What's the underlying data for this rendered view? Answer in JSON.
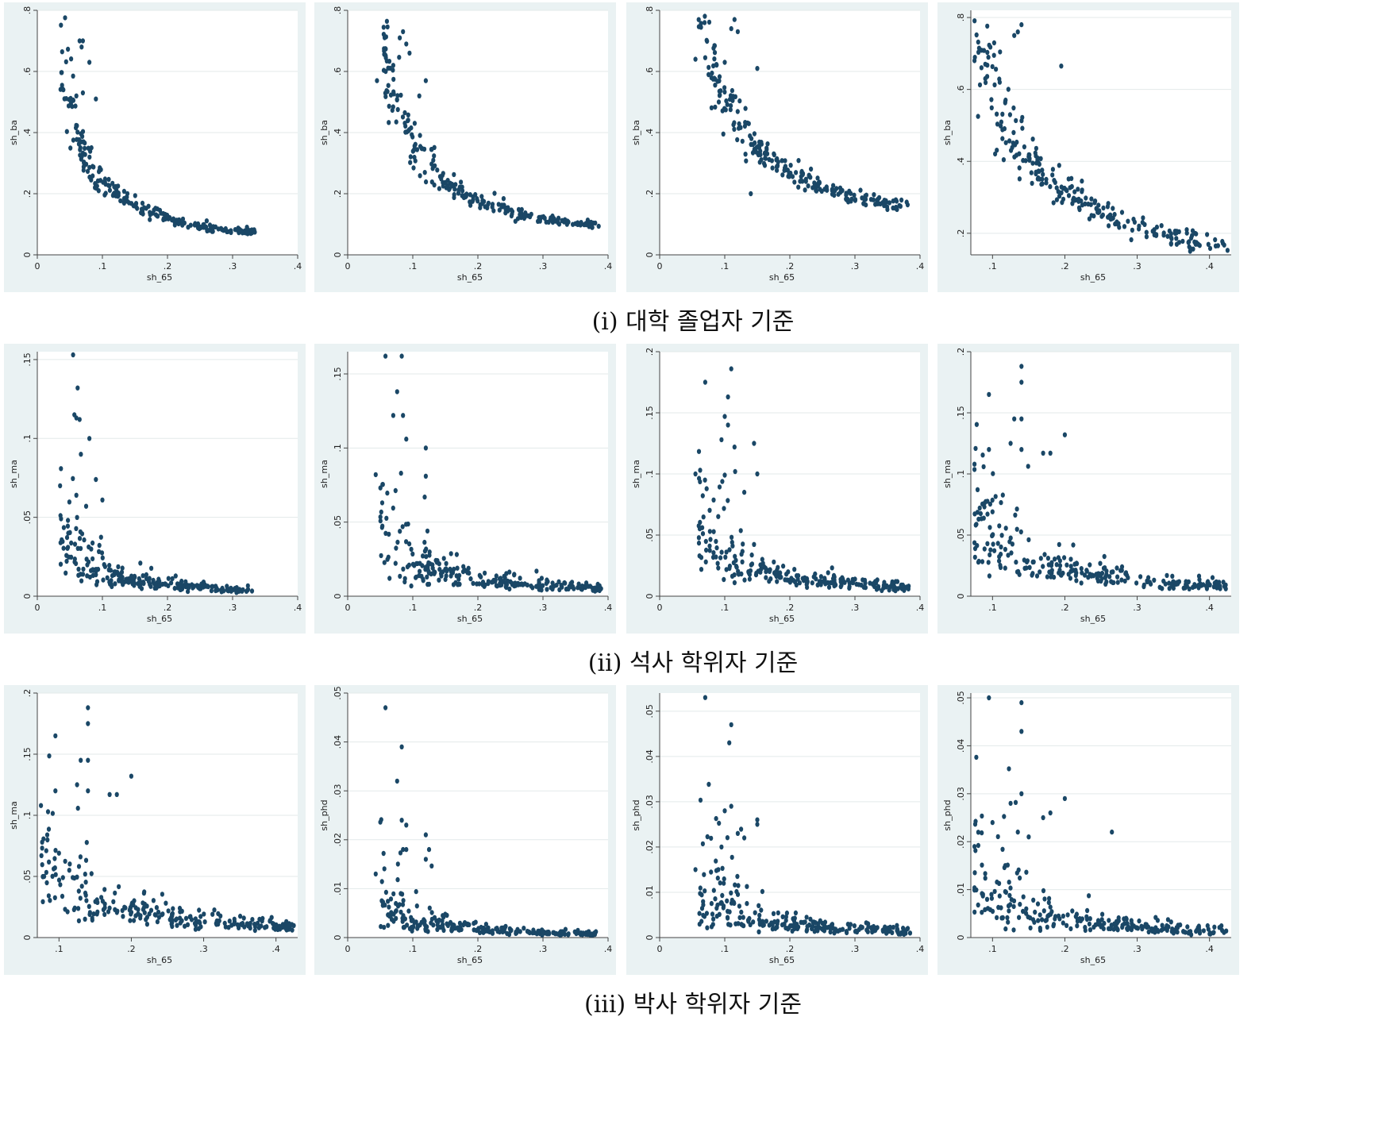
{
  "captions": [
    "(i) 대학 졸업자 기준",
    "(ii) 석사 학위자 기준",
    "(iii) 박사 학위자 기준"
  ],
  "chart_data": [
    {
      "type": "scatter",
      "xlabel": "sh_65",
      "ylabel": "sh_ba",
      "xlim": [
        0,
        0.4
      ],
      "ylim": [
        0,
        0.8
      ],
      "xticks": [
        0,
        0.1,
        0.2,
        0.3,
        0.4
      ],
      "xtick_labels": [
        "0",
        ".1",
        ".2",
        ".3",
        ".4"
      ],
      "yticks": [
        0,
        0.2,
        0.4,
        0.6,
        0.8
      ],
      "ytick_labels": [
        "0",
        ".2",
        ".4",
        ".6",
        ".8"
      ],
      "grid": true,
      "legend": "none",
      "model": {
        "kind": "inv",
        "x_range": [
          0.035,
          0.335
        ],
        "a": 0.024,
        "b": 0.0,
        "spread": 0.12,
        "n": 230
      },
      "points": [
        [
          0.065,
          0.7
        ],
        [
          0.07,
          0.7
        ],
        [
          0.068,
          0.68
        ],
        [
          0.08,
          0.63
        ],
        [
          0.055,
          0.585
        ],
        [
          0.04,
          0.54
        ],
        [
          0.07,
          0.53
        ],
        [
          0.09,
          0.51
        ],
        [
          0.06,
          0.52
        ]
      ]
    },
    {
      "type": "scatter",
      "xlabel": "sh_65",
      "ylabel": "sh_ba",
      "xlim": [
        0,
        0.4
      ],
      "ylim": [
        0,
        0.8
      ],
      "xticks": [
        0,
        0.1,
        0.2,
        0.3,
        0.4
      ],
      "xtick_labels": [
        "0",
        ".1",
        ".2",
        ".3",
        ".4"
      ],
      "yticks": [
        0,
        0.2,
        0.4,
        0.6,
        0.8
      ],
      "ytick_labels": [
        "0",
        ".2",
        ".4",
        ".6",
        ".8"
      ],
      "grid": true,
      "legend": "none",
      "model": {
        "kind": "inv",
        "x_range": [
          0.055,
          0.39
        ],
        "a": 0.036,
        "b": 0.0,
        "spread": 0.12,
        "n": 240
      },
      "points": [
        [
          0.085,
          0.73
        ],
        [
          0.08,
          0.71
        ],
        [
          0.09,
          0.69
        ],
        [
          0.095,
          0.66
        ],
        [
          0.07,
          0.62
        ],
        [
          0.045,
          0.57
        ],
        [
          0.12,
          0.57
        ],
        [
          0.11,
          0.52
        ]
      ]
    },
    {
      "type": "scatter",
      "xlabel": "sh_65",
      "ylabel": "sh_ba",
      "xlim": [
        0,
        0.4
      ],
      "ylim": [
        0,
        0.8
      ],
      "xticks": [
        0,
        0.1,
        0.2,
        0.3,
        0.4
      ],
      "xtick_labels": [
        "0",
        ".1",
        ".2",
        ".3",
        ".4"
      ],
      "yticks": [
        0,
        0.2,
        0.4,
        0.6,
        0.8
      ],
      "ytick_labels": [
        "0",
        ".2",
        ".4",
        ".6",
        ".8"
      ],
      "grid": true,
      "legend": "none",
      "model": {
        "kind": "inv",
        "x_range": [
          0.06,
          0.385
        ],
        "a": 0.048,
        "b": 0.03,
        "spread": 0.11,
        "n": 240
      },
      "points": [
        [
          0.115,
          0.77
        ],
        [
          0.11,
          0.74
        ],
        [
          0.12,
          0.73
        ],
        [
          0.055,
          0.64
        ],
        [
          0.07,
          0.645
        ],
        [
          0.1,
          0.63
        ],
        [
          0.15,
          0.61
        ],
        [
          0.14,
          0.2
        ]
      ]
    },
    {
      "type": "scatter",
      "xlabel": "sh_65",
      "ylabel": "sh_ba",
      "xlim": [
        0.07,
        0.43
      ],
      "ylim": [
        0.14,
        0.82
      ],
      "xticks": [
        0.1,
        0.2,
        0.3,
        0.4
      ],
      "xtick_labels": [
        ".1",
        ".2",
        ".3",
        ".4"
      ],
      "yticks": [
        0.2,
        0.4,
        0.6,
        0.8
      ],
      "ytick_labels": [
        ".2",
        ".4",
        ".6",
        ".8"
      ],
      "grid": true,
      "legend": "none",
      "model": {
        "kind": "inv",
        "x_range": [
          0.075,
          0.425
        ],
        "a": 0.058,
        "b": 0.03,
        "spread": 0.12,
        "n": 250
      },
      "points": [
        [
          0.14,
          0.78
        ],
        [
          0.135,
          0.76
        ],
        [
          0.13,
          0.75
        ],
        [
          0.075,
          0.68
        ],
        [
          0.09,
          0.67
        ],
        [
          0.195,
          0.665
        ],
        [
          0.09,
          0.63
        ],
        [
          0.08,
          0.525
        ],
        [
          0.11,
          0.62
        ]
      ]
    },
    {
      "type": "scatter",
      "xlabel": "sh_65",
      "ylabel": "sh_ma",
      "xlim": [
        0,
        0.4
      ],
      "ylim": [
        0,
        0.155
      ],
      "xticks": [
        0,
        0.1,
        0.2,
        0.3,
        0.4
      ],
      "xtick_labels": [
        "0",
        ".1",
        ".2",
        ".3",
        ".4"
      ],
      "yticks": [
        0,
        0.05,
        0.1,
        0.15
      ],
      "ytick_labels": [
        "0",
        ".05",
        ".1",
        ".15"
      ],
      "grid": true,
      "legend": "none",
      "model": {
        "kind": "inv",
        "x_range": [
          0.035,
          0.335
        ],
        "a": 0.0016,
        "b": -0.001,
        "spread": 0.45,
        "n": 240
      },
      "points": [
        [
          0.055,
          0.153
        ],
        [
          0.062,
          0.132
        ],
        [
          0.057,
          0.115
        ],
        [
          0.06,
          0.113
        ],
        [
          0.065,
          0.112
        ],
        [
          0.08,
          0.1
        ],
        [
          0.067,
          0.09
        ],
        [
          0.09,
          0.074
        ],
        [
          0.035,
          0.07
        ],
        [
          0.1,
          0.061
        ],
        [
          0.06,
          0.064
        ],
        [
          0.075,
          0.057
        ]
      ]
    },
    {
      "type": "scatter",
      "xlabel": "sh_65",
      "ylabel": "sh_ma",
      "xlim": [
        0,
        0.4
      ],
      "ylim": [
        0,
        0.165
      ],
      "xticks": [
        0,
        0.1,
        0.2,
        0.3,
        0.4
      ],
      "xtick_labels": [
        "0",
        ".1",
        ".2",
        ".3",
        ".4"
      ],
      "yticks": [
        0,
        0.05,
        0.1,
        0.15
      ],
      "ytick_labels": [
        "0",
        ".05",
        ".1",
        ".15"
      ],
      "grid": true,
      "legend": "none",
      "model": {
        "kind": "inv",
        "x_range": [
          0.05,
          0.39
        ],
        "a": 0.0025,
        "b": -0.001,
        "spread": 0.45,
        "n": 240
      },
      "points": [
        [
          0.058,
          0.162
        ],
        [
          0.083,
          0.162
        ],
        [
          0.076,
          0.138
        ],
        [
          0.07,
          0.122
        ],
        [
          0.085,
          0.122
        ],
        [
          0.09,
          0.106
        ],
        [
          0.12,
          0.1
        ],
        [
          0.043,
          0.082
        ],
        [
          0.12,
          0.081
        ],
        [
          0.082,
          0.083
        ]
      ]
    },
    {
      "type": "scatter",
      "xlabel": "sh_65",
      "ylabel": "sh_ma",
      "xlim": [
        0,
        0.4
      ],
      "ylim": [
        0,
        0.2
      ],
      "xticks": [
        0,
        0.1,
        0.2,
        0.3,
        0.4
      ],
      "xtick_labels": [
        "0",
        ".1",
        ".2",
        ".3",
        ".4"
      ],
      "yticks": [
        0,
        0.05,
        0.1,
        0.15,
        0.2
      ],
      "ytick_labels": [
        "0",
        ".05",
        ".1",
        ".15",
        ".2"
      ],
      "grid": true,
      "legend": "none",
      "model": {
        "kind": "inv",
        "x_range": [
          0.06,
          0.385
        ],
        "a": 0.0038,
        "b": -0.003,
        "spread": 0.45,
        "n": 240
      },
      "points": [
        [
          0.11,
          0.186
        ],
        [
          0.07,
          0.175
        ],
        [
          0.105,
          0.163
        ],
        [
          0.1,
          0.147
        ],
        [
          0.105,
          0.14
        ],
        [
          0.095,
          0.128
        ],
        [
          0.115,
          0.122
        ],
        [
          0.145,
          0.125
        ],
        [
          0.055,
          0.1
        ],
        [
          0.1,
          0.099
        ],
        [
          0.15,
          0.1
        ],
        [
          0.13,
          0.085
        ]
      ]
    },
    {
      "type": "scatter",
      "xlabel": "sh_65",
      "ylabel": "sh_ma",
      "xlim": [
        0.07,
        0.43
      ],
      "ylim": [
        0,
        0.2
      ],
      "xticks": [
        0.1,
        0.2,
        0.3,
        0.4
      ],
      "xtick_labels": [
        ".1",
        ".2",
        ".3",
        ".4"
      ],
      "yticks": [
        0,
        0.05,
        0.1,
        0.15,
        0.2
      ],
      "ytick_labels": [
        "0",
        ".05",
        ".1",
        ".15",
        ".2"
      ],
      "grid": true,
      "legend": "none",
      "model": {
        "kind": "inv",
        "x_range": [
          0.075,
          0.425
        ],
        "a": 0.0052,
        "b": -0.004,
        "spread": 0.45,
        "n": 250
      },
      "points": [
        [
          0.14,
          0.188
        ],
        [
          0.14,
          0.175
        ],
        [
          0.095,
          0.165
        ],
        [
          0.13,
          0.145
        ],
        [
          0.14,
          0.145
        ],
        [
          0.2,
          0.132
        ],
        [
          0.125,
          0.125
        ],
        [
          0.095,
          0.12
        ],
        [
          0.14,
          0.12
        ],
        [
          0.17,
          0.117
        ],
        [
          0.18,
          0.117
        ],
        [
          0.075,
          0.108
        ],
        [
          0.1,
          0.069
        ]
      ]
    },
    {
      "type": "scatter",
      "xlabel": "sh_65",
      "ylabel": "sh_ma",
      "xlim": [
        0.07,
        0.43
      ],
      "ylim": [
        0,
        0.2
      ],
      "xticks": [
        0.1,
        0.2,
        0.3,
        0.4
      ],
      "xtick_labels": [
        ".1",
        ".2",
        ".3",
        ".4"
      ],
      "yticks": [
        0,
        0.05,
        0.1,
        0.15,
        0.2
      ],
      "ytick_labels": [
        "0",
        ".05",
        ".1",
        ".15",
        ".2"
      ],
      "grid": true,
      "legend": "none",
      "model": {
        "kind": "inv",
        "x_range": [
          0.075,
          0.425
        ],
        "a": 0.0052,
        "b": -0.004,
        "spread": 0.45,
        "n": 250
      },
      "points": [
        [
          0.14,
          0.188
        ],
        [
          0.14,
          0.175
        ],
        [
          0.095,
          0.165
        ],
        [
          0.13,
          0.145
        ],
        [
          0.14,
          0.145
        ],
        [
          0.2,
          0.132
        ],
        [
          0.125,
          0.125
        ],
        [
          0.095,
          0.12
        ],
        [
          0.14,
          0.12
        ],
        [
          0.17,
          0.117
        ],
        [
          0.18,
          0.117
        ],
        [
          0.075,
          0.108
        ],
        [
          0.1,
          0.069
        ]
      ]
    },
    {
      "type": "scatter",
      "xlabel": "sh_65",
      "ylabel": "sh_phd",
      "xlim": [
        0,
        0.4
      ],
      "ylim": [
        0,
        0.05
      ],
      "xticks": [
        0,
        0.1,
        0.2,
        0.3,
        0.4
      ],
      "xtick_labels": [
        "0",
        ".1",
        ".2",
        ".3",
        ".4"
      ],
      "yticks": [
        0,
        0.01,
        0.02,
        0.03,
        0.04,
        0.05
      ],
      "ytick_labels": [
        "0",
        ".01",
        ".02",
        ".03",
        ".04",
        ".05"
      ],
      "grid": true,
      "legend": "none",
      "model": {
        "kind": "inv",
        "x_range": [
          0.05,
          0.39
        ],
        "a": 0.00045,
        "b": -0.0005,
        "spread": 0.55,
        "n": 240
      },
      "points": [
        [
          0.058,
          0.047
        ],
        [
          0.083,
          0.039
        ],
        [
          0.076,
          0.032
        ],
        [
          0.083,
          0.024
        ],
        [
          0.09,
          0.023
        ],
        [
          0.12,
          0.021
        ],
        [
          0.125,
          0.018
        ],
        [
          0.043,
          0.013
        ],
        [
          0.085,
          0.018
        ],
        [
          0.09,
          0.018
        ],
        [
          0.12,
          0.016
        ]
      ]
    },
    {
      "type": "scatter",
      "xlabel": "sh_65",
      "ylabel": "sh_phd",
      "xlim": [
        0,
        0.4
      ],
      "ylim": [
        0,
        0.054
      ],
      "xticks": [
        0,
        0.1,
        0.2,
        0.3,
        0.4
      ],
      "xtick_labels": [
        "0",
        ".1",
        ".2",
        ".3",
        ".4"
      ],
      "yticks": [
        0,
        0.01,
        0.02,
        0.03,
        0.04,
        0.05
      ],
      "ytick_labels": [
        "0",
        ".01",
        ".02",
        ".03",
        ".04",
        ".05"
      ],
      "grid": true,
      "legend": "none",
      "model": {
        "kind": "inv",
        "x_range": [
          0.06,
          0.385
        ],
        "a": 0.00075,
        "b": -0.0006,
        "spread": 0.55,
        "n": 240
      },
      "points": [
        [
          0.07,
          0.053
        ],
        [
          0.11,
          0.047
        ],
        [
          0.107,
          0.043
        ],
        [
          0.11,
          0.029
        ],
        [
          0.1,
          0.028
        ],
        [
          0.15,
          0.026
        ],
        [
          0.15,
          0.025
        ],
        [
          0.12,
          0.023
        ],
        [
          0.13,
          0.022
        ],
        [
          0.055,
          0.015
        ],
        [
          0.095,
          0.02
        ]
      ]
    },
    {
      "type": "scatter",
      "xlabel": "sh_65",
      "ylabel": "sh_phd",
      "xlim": [
        0.07,
        0.43
      ],
      "ylim": [
        0,
        0.051
      ],
      "xticks": [
        0.1,
        0.2,
        0.3,
        0.4
      ],
      "xtick_labels": [
        ".1",
        ".2",
        ".3",
        ".4"
      ],
      "yticks": [
        0,
        0.01,
        0.02,
        0.03,
        0.04,
        0.05
      ],
      "ytick_labels": [
        "0",
        ".01",
        ".02",
        ".03",
        ".04",
        ".05"
      ],
      "grid": true,
      "legend": "none",
      "model": {
        "kind": "inv",
        "x_range": [
          0.075,
          0.425
        ],
        "a": 0.0009,
        "b": -0.0008,
        "spread": 0.6,
        "n": 250
      },
      "points": [
        [
          0.095,
          0.05
        ],
        [
          0.14,
          0.049
        ],
        [
          0.14,
          0.043
        ],
        [
          0.14,
          0.03
        ],
        [
          0.2,
          0.029
        ],
        [
          0.125,
          0.028
        ],
        [
          0.18,
          0.026
        ],
        [
          0.17,
          0.025
        ],
        [
          0.265,
          0.022
        ],
        [
          0.135,
          0.022
        ],
        [
          0.15,
          0.021
        ],
        [
          0.075,
          0.019
        ],
        [
          0.1,
          0.024
        ]
      ]
    }
  ]
}
